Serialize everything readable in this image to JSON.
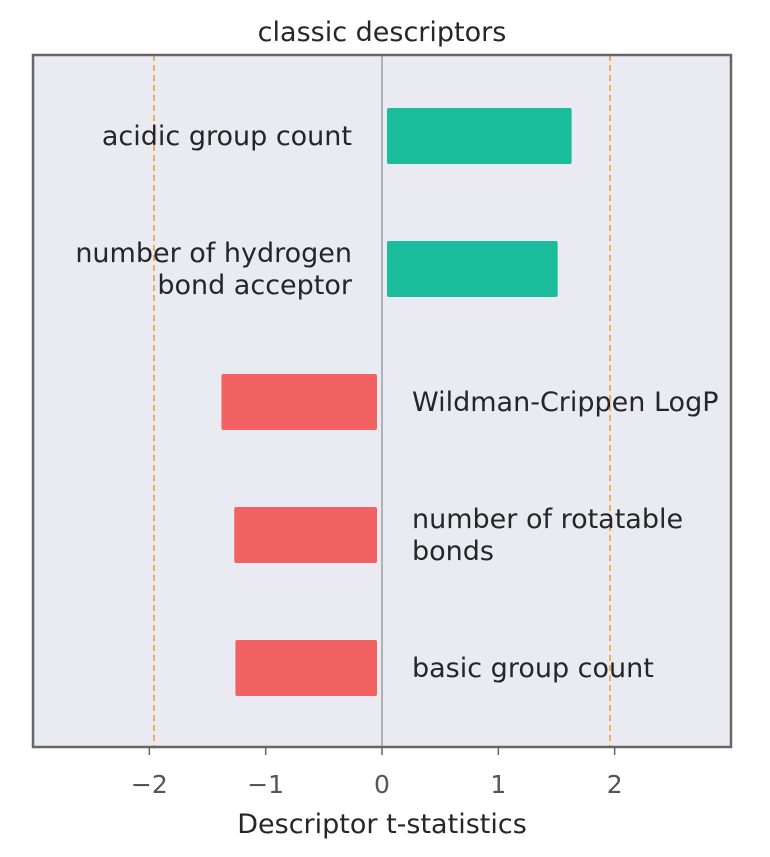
{
  "chart_data": {
    "type": "bar",
    "orientation": "horizontal",
    "title": "classic descriptors",
    "xlabel": "Descriptor t-statistics",
    "ylabel": "",
    "xlim": [
      -3,
      3
    ],
    "xticks": [
      -2,
      -1,
      0,
      1,
      2
    ],
    "xtick_labels": [
      "−2",
      "−1",
      "0",
      "1",
      "2"
    ],
    "categories": [
      "acidic group count",
      "number of hydrogen bond acceptor",
      "Wildman-Crippen LogP",
      "number of rotatable bonds",
      "basic group count"
    ],
    "category_label_lines": [
      [
        "acidic group count"
      ],
      [
        "number of hydrogen",
        "bond acceptor"
      ],
      [
        "Wildman-Crippen LogP"
      ],
      [
        "number of rotatable",
        "bonds"
      ],
      [
        "basic group count"
      ]
    ],
    "values": [
      1.63,
      1.51,
      -1.38,
      -1.27,
      -1.26
    ],
    "reference_lines": [
      -1.96,
      1.96
    ],
    "colors": {
      "positive": "#1abc9c",
      "negative": "#f26262",
      "reference_line": "#f0a030",
      "zero_line": "#8c8c8c",
      "plot_background": "#eaeaf2",
      "frame": "#666666"
    },
    "grid": false,
    "legend": "none"
  }
}
